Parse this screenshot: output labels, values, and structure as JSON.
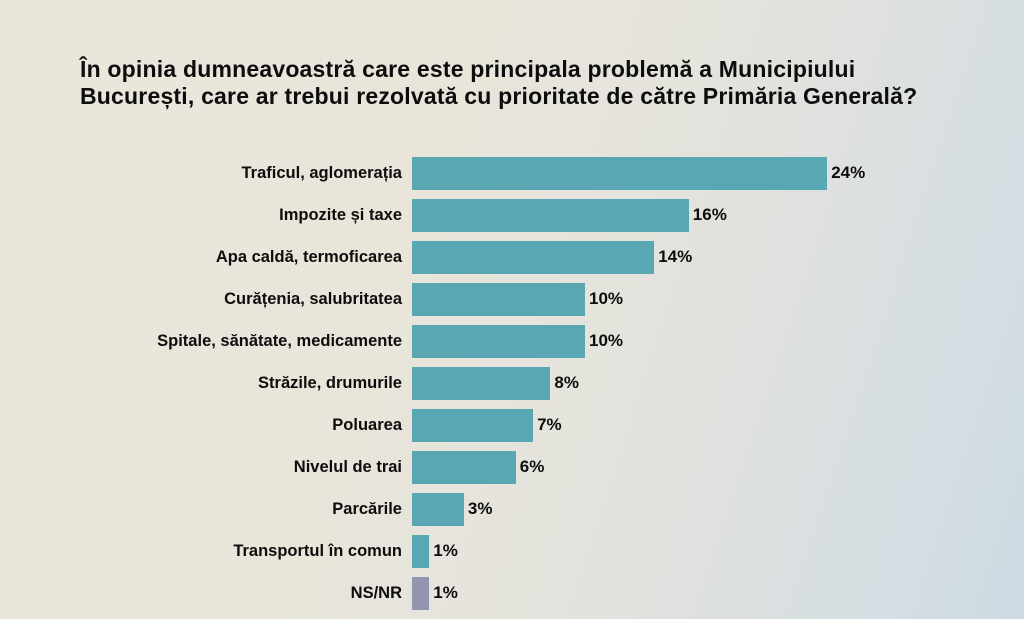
{
  "chart_data": {
    "type": "bar",
    "orientation": "horizontal",
    "title": "În opinia dumneavoastră care este principala problemă a Municipiului București, care ar trebui rezolvată cu prioritate de către Primăria Generală?",
    "categories": [
      "Traficul, aglomerația",
      "Impozite și taxe",
      "Apa caldă, termoficarea",
      "Curățenia, salubritatea",
      "Spitale, sănătate, medicamente",
      "Străzile, drumurile",
      "Poluarea",
      "Nivelul de trai",
      "Parcările",
      "Transportul în comun",
      "NS/NR"
    ],
    "values": [
      24,
      16,
      14,
      10,
      10,
      8,
      7,
      6,
      3,
      1,
      1
    ],
    "value_labels": [
      "24%",
      "16%",
      "14%",
      "10%",
      "10%",
      "8%",
      "7%",
      "6%",
      "3%",
      "1%",
      "1%"
    ],
    "bar_colors": [
      "#58a7b2",
      "#58a7b2",
      "#58a7b2",
      "#58a7b2",
      "#58a7b2",
      "#58a7b2",
      "#58a7b2",
      "#58a7b2",
      "#58a7b2",
      "#58a7b2",
      "#9196ae"
    ],
    "xlim": [
      0,
      25
    ],
    "xlabel": "",
    "ylabel": "",
    "grid": false,
    "legend": false,
    "background_colors": {
      "left": "#eae6db",
      "right": "#ccdae2"
    }
  }
}
